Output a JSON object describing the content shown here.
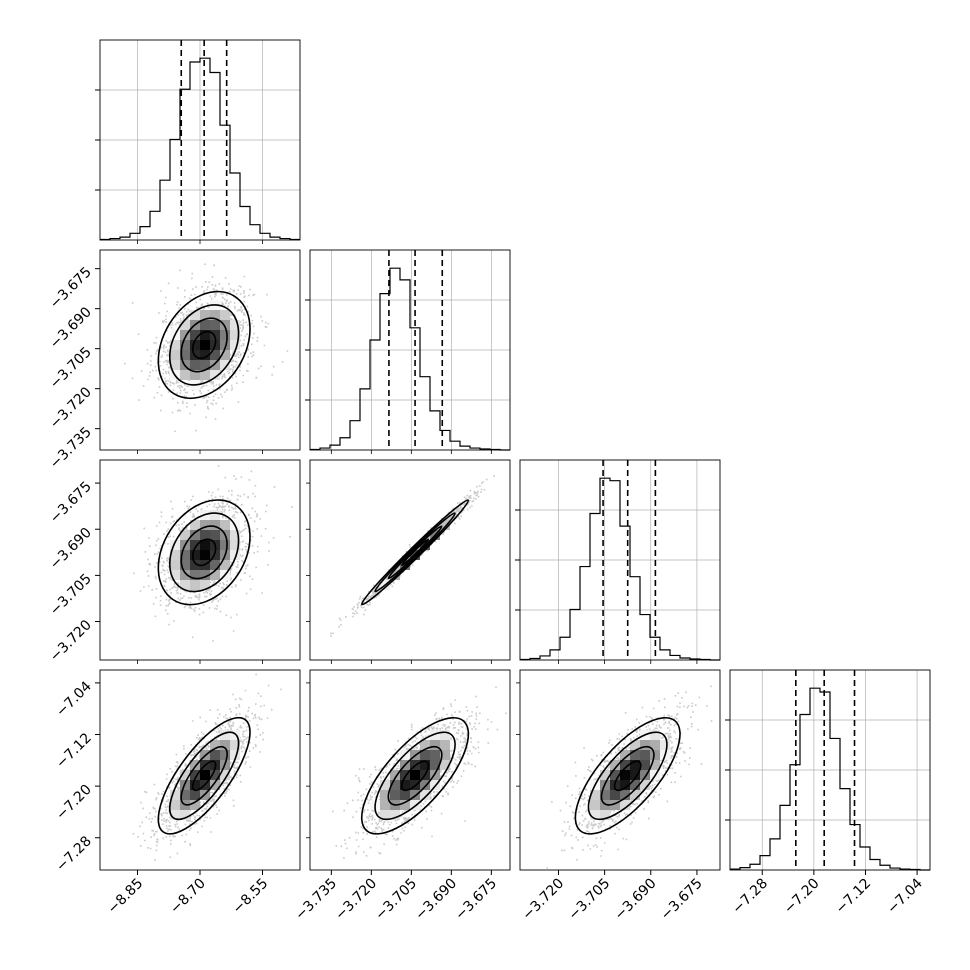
{
  "chart_data": {
    "type": "corner",
    "n_params": 4,
    "axes": [
      {
        "ticks": [
          -8.85,
          -8.7,
          -8.55
        ],
        "tick_labels": [
          "−8.85",
          "−8.70",
          "−8.55"
        ],
        "range": [
          -8.94,
          -8.46
        ]
      },
      {
        "ticks": [
          -3.735,
          -3.72,
          -3.705,
          -3.69,
          -3.675
        ],
        "tick_labels": [
          "−3.735",
          "−3.720",
          "−3.705",
          "−3.690",
          "−3.675"
        ],
        "range": [
          -3.743,
          -3.668
        ]
      },
      {
        "ticks": [
          -3.72,
          -3.705,
          -3.69,
          -3.675
        ],
        "tick_labels": [
          "−3.720",
          "−3.705",
          "−3.690",
          "−3.675"
        ],
        "range": [
          -3.7325,
          -3.6675
        ]
      },
      {
        "ticks": [
          -7.28,
          -7.2,
          -7.12,
          -7.04
        ],
        "tick_labels": [
          "−7.28",
          "−7.20",
          "−7.12",
          "−7.04"
        ],
        "range": [
          -7.33,
          -7.02
        ]
      }
    ],
    "marginals": [
      {
        "param": 0,
        "bin_start": -8.94,
        "bin_end": -8.46,
        "counts": [
          1,
          3,
          6,
          14,
          28,
          60,
          125,
          210,
          315,
          372,
          380,
          350,
          240,
          140,
          70,
          32,
          14,
          6,
          3,
          1
        ],
        "quantiles": [
          -8.745,
          -8.69,
          -8.636
        ]
      },
      {
        "param": 1,
        "bin_start": -3.743,
        "bin_end": -3.668,
        "counts": [
          1,
          4,
          10,
          25,
          60,
          125,
          225,
          320,
          372,
          348,
          250,
          150,
          80,
          40,
          18,
          8,
          4,
          2,
          1,
          0
        ],
        "quantiles": [
          -3.7134,
          -3.7036,
          -3.6934
        ]
      },
      {
        "param": 2,
        "bin_start": -3.7325,
        "bin_end": -3.6675,
        "counts": [
          1,
          3,
          8,
          20,
          45,
          100,
          185,
          290,
          360,
          355,
          265,
          165,
          90,
          45,
          20,
          9,
          4,
          2,
          1,
          0
        ],
        "quantiles": [
          -3.7055,
          -3.6975,
          -3.6885
        ]
      },
      {
        "param": 3,
        "bin_start": -7.33,
        "bin_end": -7.02,
        "counts": [
          2,
          5,
          12,
          30,
          65,
          135,
          220,
          325,
          380,
          372,
          275,
          170,
          95,
          48,
          22,
          10,
          4,
          2,
          1,
          0
        ],
        "quantiles": [
          -7.228,
          -7.184,
          -7.137
        ]
      }
    ],
    "pairs": [
      {
        "x": 0,
        "y": 1,
        "center": [
          -8.69,
          -3.7036
        ],
        "sigma": [
          0.055,
          0.01
        ],
        "corr": 0.3
      },
      {
        "x": 0,
        "y": 2,
        "center": [
          -8.69,
          -3.6975
        ],
        "sigma": [
          0.055,
          0.0085
        ],
        "corr": 0.3
      },
      {
        "x": 0,
        "y": 3,
        "center": [
          -8.69,
          -7.184
        ],
        "sigma": [
          0.055,
          0.045
        ],
        "corr": 0.75
      },
      {
        "x": 1,
        "y": 2,
        "center": [
          -3.7036,
          -3.6975
        ],
        "sigma": [
          0.01,
          0.0085
        ],
        "corr": 0.99
      },
      {
        "x": 1,
        "y": 3,
        "center": [
          -3.7036,
          -7.184
        ],
        "sigma": [
          0.01,
          0.045
        ],
        "corr": 0.72
      },
      {
        "x": 2,
        "y": 3,
        "center": [
          -3.6975,
          -7.184
        ],
        "sigma": [
          0.0085,
          0.045
        ],
        "corr": 0.72
      }
    ],
    "contour_levels_sigma": [
      0.5,
      1.0,
      1.5,
      2.0
    ],
    "grid": true,
    "title": "",
    "legend": "none"
  }
}
